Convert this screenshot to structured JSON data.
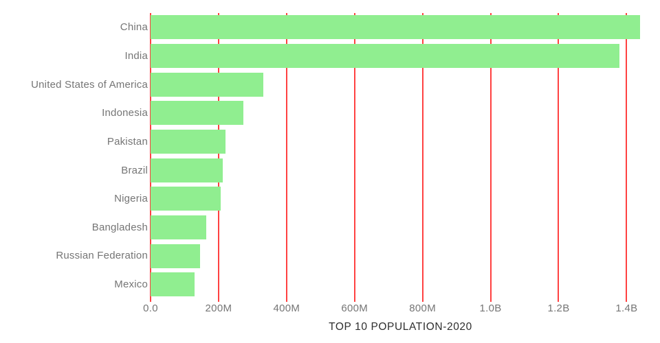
{
  "page": {
    "background_color": "#ffffff"
  },
  "chart_data": {
    "type": "bar",
    "orientation": "horizontal",
    "title": "TOP 10 POPULATION-2020",
    "categories": [
      "China",
      "India",
      "United States of America",
      "Indonesia",
      "Pakistan",
      "Brazil",
      "Nigeria",
      "Bangladesh",
      "Russian Federation",
      "Mexico"
    ],
    "values_millions": [
      1439.3,
      1380.0,
      331.0,
      273.5,
      220.9,
      212.6,
      206.1,
      164.7,
      145.9,
      128.9
    ],
    "x_ticks": [
      {
        "value_millions": 0,
        "label": "0.0"
      },
      {
        "value_millions": 200,
        "label": "200M"
      },
      {
        "value_millions": 400,
        "label": "400M"
      },
      {
        "value_millions": 600,
        "label": "600M"
      },
      {
        "value_millions": 800,
        "label": "800M"
      },
      {
        "value_millions": 1000,
        "label": "1.0B"
      },
      {
        "value_millions": 1200,
        "label": "1.2B"
      },
      {
        "value_millions": 1400,
        "label": "1.4B"
      }
    ],
    "xlim_millions": [
      0,
      1470
    ],
    "grid": true,
    "legend": false,
    "colors": {
      "bar_fill": "#90ee90",
      "gridline": "#ff4040",
      "axis_label_text": "#757575",
      "title_text": "#2e2e2e"
    }
  }
}
